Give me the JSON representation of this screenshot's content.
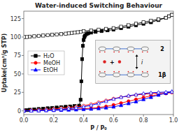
{
  "chart_data": {
    "type": "line",
    "title": "Water-induced Switching Behaviour",
    "x_label": "P / P₀",
    "y_label": "Uptake(cm³/g STP)",
    "xlim": [
      0.0,
      1.0
    ],
    "ylim": [
      -5,
      135
    ],
    "xticks": [
      {
        "value": 0.0,
        "label": "0.0"
      },
      0.2,
      0.4,
      0.6,
      0.8,
      {
        "value": 1.0,
        "label": "1.0"
      }
    ],
    "yticks": [
      0,
      25,
      50,
      75,
      100,
      125
    ],
    "grid": false,
    "legend": "center left",
    "annotations": [
      "2",
      "1β",
      "+",
      "i"
    ],
    "series": [
      {
        "name": "H₂O",
        "color": "#000000",
        "marker": "square",
        "x": [
          0.0,
          0.02,
          0.04,
          0.07,
          0.1,
          0.13,
          0.16,
          0.19,
          0.22,
          0.25,
          0.28,
          0.31,
          0.34,
          0.37,
          0.38,
          0.385,
          0.39,
          0.395,
          0.4,
          0.405,
          0.41,
          0.42,
          0.43,
          0.45,
          0.48,
          0.52,
          0.56,
          0.6,
          0.65,
          0.7,
          0.75,
          0.8,
          0.85,
          0.9,
          0.95,
          0.97,
          0.99
        ],
        "values": [
          0.5,
          1.0,
          1.5,
          2.0,
          2.5,
          3.0,
          3.5,
          4.0,
          4.5,
          5.0,
          5.5,
          6.0,
          6.5,
          7.0,
          15,
          40,
          70,
          88,
          96,
          100,
          102,
          104,
          105,
          106,
          107,
          108,
          109,
          110,
          112,
          114,
          116,
          118,
          120,
          123,
          126,
          128,
          130
        ]
      },
      {
        "name": "H₂O",
        "color": "#000000",
        "marker": "square-open",
        "x": [
          0.99,
          0.97,
          0.95,
          0.9,
          0.85,
          0.8,
          0.75,
          0.7,
          0.65,
          0.6,
          0.55,
          0.5,
          0.45,
          0.4,
          0.38,
          0.36,
          0.34,
          0.32,
          0.3,
          0.28,
          0.25,
          0.22,
          0.19,
          0.16,
          0.13,
          0.1,
          0.07,
          0.04,
          0.02,
          0.0
        ],
        "values": [
          130,
          128,
          126,
          124,
          122,
          120,
          118,
          116,
          114,
          112,
          111,
          110,
          109,
          108,
          107,
          106.5,
          106,
          105.5,
          105,
          104.5,
          104,
          103.5,
          103,
          102.5,
          102,
          101.5,
          101,
          100.5,
          100,
          100
        ]
      },
      {
        "name": "MeOH",
        "color": "#ff0000",
        "marker": "circle",
        "x": [
          0.0,
          0.05,
          0.1,
          0.15,
          0.2,
          0.25,
          0.3,
          0.35,
          0.4,
          0.45,
          0.5,
          0.55,
          0.6,
          0.65,
          0.7,
          0.75,
          0.8,
          0.85,
          0.9,
          0.95,
          0.99
        ],
        "values": [
          0.0,
          0.3,
          0.5,
          0.8,
          1.0,
          1.5,
          2.0,
          2.5,
          3.0,
          3.5,
          4.5,
          6.0,
          8.0,
          10.5,
          13.0,
          15.5,
          18.0,
          20.5,
          22.0,
          23.5,
          25.0
        ]
      },
      {
        "name": "MeOH",
        "color": "#ff0000",
        "marker": "circle-open",
        "x": [
          0.99,
          0.95,
          0.9,
          0.85,
          0.8,
          0.75,
          0.7,
          0.65,
          0.6,
          0.55,
          0.5,
          0.45,
          0.4,
          0.35,
          0.3,
          0.25,
          0.2,
          0.15,
          0.1,
          0.05,
          0.0
        ],
        "values": [
          25.0,
          24.5,
          24.0,
          23.5,
          22.5,
          21.5,
          20.0,
          18.5,
          16.5,
          14.0,
          11.5,
          9.0,
          7.0,
          5.5,
          4.5,
          3.5,
          2.5,
          1.8,
          1.2,
          0.7,
          0.3
        ]
      },
      {
        "name": "EtOH",
        "color": "#0000ff",
        "marker": "triangle",
        "x": [
          0.0,
          0.05,
          0.1,
          0.15,
          0.2,
          0.25,
          0.3,
          0.35,
          0.4,
          0.45,
          0.5,
          0.55,
          0.6,
          0.65,
          0.7,
          0.75,
          0.8,
          0.85,
          0.9,
          0.95,
          0.99
        ],
        "values": [
          0.0,
          0.2,
          0.4,
          0.6,
          0.8,
          1.0,
          1.3,
          1.6,
          2.0,
          2.5,
          3.2,
          4.2,
          5.5,
          7.5,
          10.0,
          12.5,
          15.5,
          18.5,
          21.5,
          24.0,
          26.0
        ]
      },
      {
        "name": "EtOH",
        "color": "#0000ff",
        "marker": "triangle-open",
        "x": [
          0.99,
          0.95,
          0.9,
          0.85,
          0.8,
          0.75,
          0.7,
          0.65,
          0.6,
          0.55,
          0.5,
          0.45,
          0.4,
          0.35,
          0.3,
          0.25,
          0.2,
          0.15,
          0.1,
          0.05,
          0.0
        ],
        "values": [
          26.0,
          25.5,
          25.0,
          24.5,
          23.5,
          22.0,
          20.5,
          18.5,
          16.0,
          13.0,
          10.0,
          7.5,
          5.5,
          4.0,
          3.0,
          2.0,
          1.3,
          0.8,
          0.5,
          0.2,
          0.1
        ]
      }
    ]
  }
}
